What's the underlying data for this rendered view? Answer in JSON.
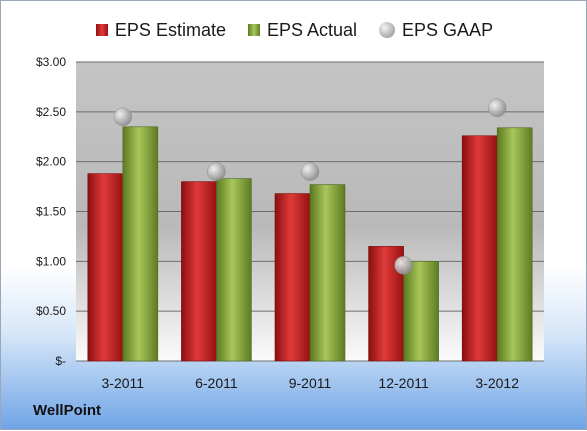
{
  "legend": {
    "estimate": "EPS Estimate",
    "actual": "EPS Actual",
    "gaap": "EPS GAAP"
  },
  "brand": "WellPoint",
  "colors": {
    "estimate": "#cc2222",
    "actual": "#8db043",
    "gaap": "#b8b8b8"
  },
  "chart_data": {
    "type": "bar",
    "categories": [
      "3-2011",
      "6-2011",
      "9-2011",
      "12-2011",
      "3-2012"
    ],
    "series": [
      {
        "name": "EPS Estimate",
        "values": [
          1.88,
          1.8,
          1.68,
          1.15,
          2.26
        ]
      },
      {
        "name": "EPS Actual",
        "values": [
          2.35,
          1.83,
          1.77,
          1.0,
          2.34
        ]
      },
      {
        "name": "EPS GAAP",
        "values": [
          2.45,
          1.9,
          1.9,
          0.96,
          2.54
        ],
        "style": "scatter"
      }
    ],
    "ylim": [
      0,
      3.0
    ],
    "yticks": [
      0,
      0.5,
      1.0,
      1.5,
      2.0,
      2.5,
      3.0
    ],
    "ytick_labels": [
      "$-",
      "$0.50",
      "$1.00",
      "$1.50",
      "$2.00",
      "$2.50",
      "$3.00"
    ],
    "legend_position": "top",
    "grid": true
  }
}
